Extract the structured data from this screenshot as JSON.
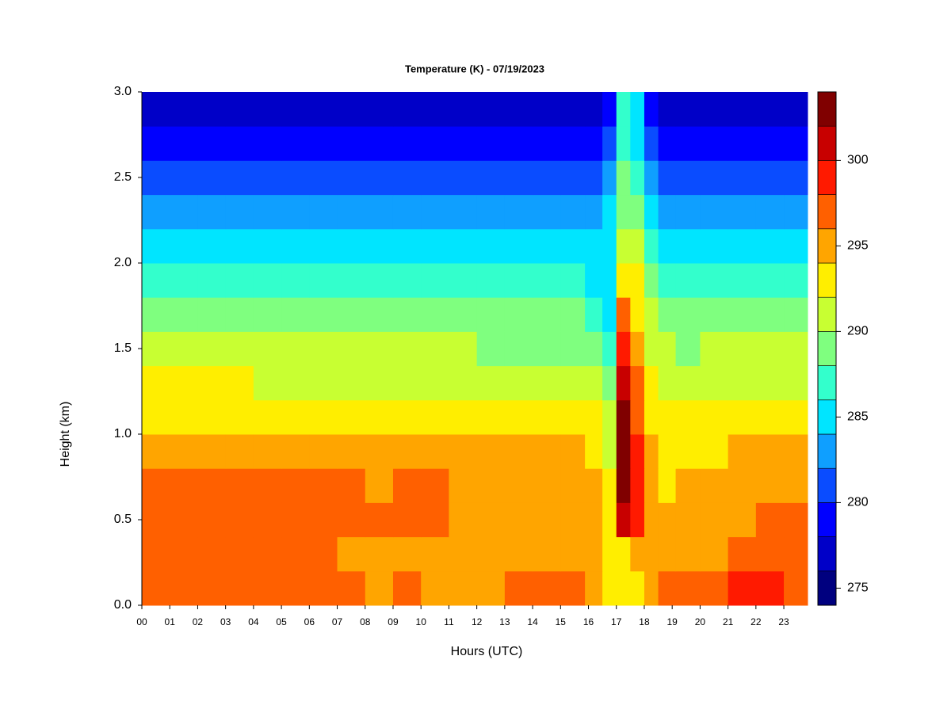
{
  "chart_data": {
    "type": "contour",
    "title": "Temperature (K) - 07/19/2023",
    "x_label": "Hours (UTC)",
    "y_label": "Height (km)",
    "xlim": [
      0,
      23.85
    ],
    "ylim": [
      0,
      3.0
    ],
    "xticks": [
      {
        "value": 0,
        "label": "00"
      },
      {
        "value": 1,
        "label": "01"
      },
      {
        "value": 2,
        "label": "02"
      },
      {
        "value": 3,
        "label": "03"
      },
      {
        "value": 4,
        "label": "04"
      },
      {
        "value": 5,
        "label": "05"
      },
      {
        "value": 6,
        "label": "06"
      },
      {
        "value": 7,
        "label": "07"
      },
      {
        "value": 8,
        "label": "08"
      },
      {
        "value": 9,
        "label": "09"
      },
      {
        "value": 10,
        "label": "10"
      },
      {
        "value": 11,
        "label": "11"
      },
      {
        "value": 12,
        "label": "12"
      },
      {
        "value": 13,
        "label": "13"
      },
      {
        "value": 14,
        "label": "14"
      },
      {
        "value": 15,
        "label": "15"
      },
      {
        "value": 16,
        "label": "16"
      },
      {
        "value": 17,
        "label": "17"
      },
      {
        "value": 18,
        "label": "18"
      },
      {
        "value": 19,
        "label": "19"
      },
      {
        "value": 20,
        "label": "20"
      },
      {
        "value": 21,
        "label": "21"
      },
      {
        "value": 22,
        "label": "22"
      },
      {
        "value": 23,
        "label": "23"
      }
    ],
    "yticks": [
      {
        "value": 0,
        "label": "0.0"
      },
      {
        "value": 0.5,
        "label": "0.5"
      },
      {
        "value": 1,
        "label": "1.0"
      },
      {
        "value": 1.5,
        "label": "1.5"
      },
      {
        "value": 2,
        "label": "2.0"
      },
      {
        "value": 2.5,
        "label": "2.5"
      },
      {
        "value": 3,
        "label": "3.0"
      }
    ],
    "levels": [
      274,
      276,
      278,
      280,
      282,
      284,
      286,
      288,
      290,
      292,
      294,
      296,
      298,
      300,
      302,
      304
    ],
    "colors": [
      "#00007f",
      "#0000c8",
      "#0000ff",
      "#0a4cff",
      "#0f9fff",
      "#00e5ff",
      "#33ffcc",
      "#7fff7f",
      "#c8ff32",
      "#ffee00",
      "#ffa500",
      "#ff6000",
      "#ff1a00",
      "#c80000",
      "#800000"
    ],
    "colorbar_ticks": [
      275,
      280,
      285,
      290,
      295,
      300
    ],
    "x": [
      0.5,
      1.5,
      2.5,
      3.5,
      4.5,
      5.5,
      6.5,
      7.5,
      8.5,
      9.5,
      10.5,
      11.5,
      12.5,
      13.5,
      14.5,
      15.5,
      16.25,
      16.75,
      17.25,
      17.75,
      18.25,
      18.75,
      19.5,
      20.5,
      21.5,
      22.5,
      23.5
    ],
    "y": [
      0.1,
      0.3,
      0.5,
      0.7,
      0.9,
      1.1,
      1.3,
      1.5,
      1.7,
      1.9,
      2.1,
      2.3,
      2.5,
      2.7,
      2.9
    ],
    "z": [
      [
        297.5,
        297.5,
        297.4,
        297.3,
        297.2,
        297,
        297.2,
        296.5,
        295.5,
        296,
        295.5,
        295.5,
        295.5,
        296.5,
        297,
        296.8,
        295,
        293,
        293,
        293,
        295,
        296.5,
        296.5,
        297.5,
        298.5,
        298.5,
        297.5
      ],
      [
        297.2,
        297.3,
        297.2,
        297,
        296.8,
        296.5,
        296,
        295.8,
        295.5,
        295.8,
        295.7,
        295.5,
        295.3,
        295.3,
        295.4,
        295.2,
        295,
        293,
        293.5,
        294,
        294,
        294.5,
        295,
        295.5,
        296.2,
        296.8,
        296.5
      ],
      [
        296.8,
        297,
        297.1,
        296.8,
        296.6,
        296.5,
        296.4,
        296.5,
        296,
        296.6,
        296.5,
        295.5,
        295.2,
        295.1,
        295,
        294.9,
        294.5,
        293,
        300,
        298,
        294.5,
        294,
        294.5,
        295,
        295.5,
        296.2,
        296
      ],
      [
        296.2,
        296.5,
        296.4,
        296.3,
        296.2,
        296,
        296,
        296,
        295.8,
        296.1,
        296,
        295.5,
        295,
        294.8,
        294.7,
        294.5,
        294,
        292,
        303,
        299,
        294,
        293.5,
        294,
        294.6,
        295.2,
        295.6,
        295.4
      ],
      [
        295.2,
        295.5,
        295.4,
        295.3,
        295.2,
        295.1,
        295,
        294.9,
        294.8,
        295,
        294.9,
        294.7,
        294.5,
        294.3,
        294.2,
        294,
        293,
        291,
        303,
        298,
        294,
        293,
        293.3,
        293.8,
        294.3,
        294.7,
        294.5
      ],
      [
        293.6,
        293.8,
        293.7,
        293.6,
        293.5,
        293.5,
        293.4,
        293.3,
        293.2,
        293.4,
        293.3,
        293.2,
        293,
        292.9,
        292.8,
        292.6,
        292,
        290,
        302,
        297,
        293,
        292.5,
        292.5,
        292.8,
        293,
        293.2,
        293.2
      ],
      [
        292,
        292.2,
        292.1,
        292,
        291.9,
        291.9,
        291.8,
        291.7,
        291.6,
        291.8,
        291.7,
        291.6,
        291.5,
        291.4,
        291.3,
        291.1,
        290,
        288.5,
        301,
        296,
        292,
        291.5,
        291.2,
        291.4,
        291.6,
        291.7,
        291.6
      ],
      [
        290.3,
        290.5,
        290.4,
        290.3,
        290.2,
        290.2,
        290.1,
        290,
        290,
        290.2,
        290.1,
        290,
        289.9,
        289.8,
        289.7,
        289.5,
        288.5,
        287,
        298,
        295,
        291,
        290.5,
        289.8,
        290,
        290.2,
        290.3,
        290.2
      ],
      [
        288.8,
        289,
        288.9,
        288.8,
        288.7,
        288.7,
        288.6,
        288.5,
        288.5,
        288.7,
        288.6,
        288.5,
        288.4,
        288.3,
        288.2,
        288,
        287,
        285.5,
        296,
        293,
        290,
        289,
        288.3,
        288.5,
        288.7,
        288.8,
        288.7
      ],
      [
        287,
        287.2,
        287.1,
        287,
        286.9,
        286.9,
        286.8,
        286.7,
        286.7,
        286.9,
        286.8,
        286.7,
        286.6,
        286.5,
        286.4,
        286.2,
        285.5,
        285,
        293,
        292,
        289,
        287.5,
        286.6,
        286.8,
        287,
        287.1,
        287
      ],
      [
        285,
        285.2,
        285.1,
        285,
        284.9,
        284.9,
        284.8,
        284.7,
        284.7,
        284.9,
        284.8,
        284.7,
        284.6,
        284.6,
        284.7,
        284.5,
        284,
        284.5,
        291,
        290,
        287,
        285.5,
        284.7,
        284.8,
        285,
        285.1,
        285
      ],
      [
        283,
        283.2,
        283.1,
        283,
        282.9,
        282.9,
        282.8,
        282.7,
        282.7,
        282.9,
        282.8,
        282.7,
        282.6,
        282.7,
        283,
        283,
        282,
        284,
        289,
        288,
        284,
        283,
        282.7,
        282.8,
        283,
        283.1,
        283
      ],
      [
        281,
        281.2,
        281.1,
        281,
        280.9,
        280.9,
        280.8,
        280.7,
        280.7,
        280.9,
        280.8,
        280.7,
        280.7,
        280.8,
        281.2,
        281.5,
        280.5,
        283,
        288,
        286,
        282,
        281,
        280.7,
        280.8,
        281,
        281.1,
        281
      ],
      [
        278.8,
        279,
        278.9,
        278.8,
        278.7,
        278.7,
        278.6,
        278.5,
        278.5,
        278.7,
        278.6,
        278.5,
        278.6,
        278.7,
        279.2,
        279.5,
        278,
        281,
        287,
        285,
        280,
        279,
        278.5,
        278.6,
        278.8,
        278.9,
        278.8
      ],
      [
        277,
        277.2,
        277.1,
        277,
        276.8,
        276.8,
        276.7,
        276.6,
        276.6,
        276.8,
        276.7,
        276.6,
        276.8,
        277,
        277.5,
        277.8,
        277,
        279,
        286,
        284,
        278,
        277,
        276.7,
        276.8,
        277,
        277.1,
        277
      ]
    ]
  }
}
